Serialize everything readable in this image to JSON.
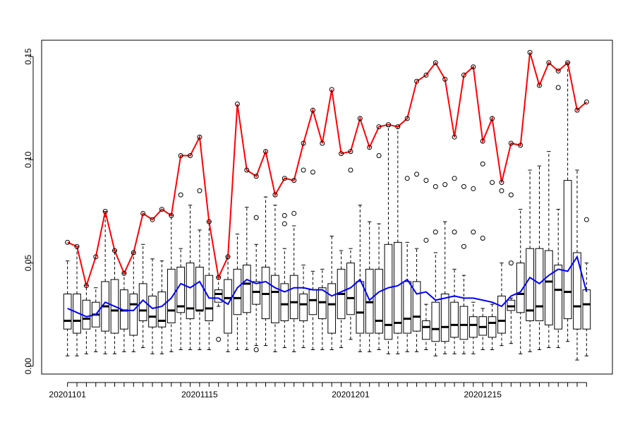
{
  "chart_data": {
    "type": "boxplot",
    "categories": [
      "20201101",
      null,
      null,
      null,
      null,
      null,
      null,
      null,
      null,
      null,
      null,
      null,
      null,
      null,
      "20201115",
      null,
      null,
      null,
      null,
      null,
      null,
      null,
      null,
      null,
      null,
      null,
      null,
      null,
      null,
      null,
      "20201201",
      null,
      null,
      null,
      null,
      null,
      null,
      null,
      null,
      null,
      null,
      null,
      null,
      null,
      "20201215",
      null,
      null,
      null,
      null,
      null,
      null,
      null,
      null,
      null,
      null,
      null
    ],
    "ylim": [
      -0.0038,
      0.1579
    ],
    "yticks": [
      {
        "value": 0,
        "label": "0.00"
      },
      0.05,
      {
        "value": 0.1,
        "label": "0.10"
      },
      0.15
    ],
    "box_color": "#000000",
    "boxes": [
      {
        "whislo": 0.005,
        "q1": 0.018,
        "med": 0.022,
        "q3": 0.035,
        "whishi": 0.051,
        "outliers": []
      },
      {
        "whislo": 0.005,
        "q1": 0.016,
        "med": 0.022,
        "q3": 0.035,
        "whishi": 0.058,
        "outliers": []
      },
      {
        "whislo": 0.006,
        "q1": 0.018,
        "med": 0.023,
        "q3": 0.032,
        "whishi": 0.039,
        "outliers": []
      },
      {
        "whislo": 0.007,
        "q1": 0.019,
        "med": 0.025,
        "q3": 0.031,
        "whishi": 0.038,
        "outliers": []
      },
      {
        "whislo": 0.006,
        "q1": 0.017,
        "med": 0.029,
        "q3": 0.041,
        "whishi": 0.075,
        "outliers": []
      },
      {
        "whislo": 0.006,
        "q1": 0.016,
        "med": 0.027,
        "q3": 0.042,
        "whishi": 0.056,
        "outliers": []
      },
      {
        "whislo": 0.007,
        "q1": 0.018,
        "med": 0.027,
        "q3": 0.037,
        "whishi": 0.045,
        "outliers": []
      },
      {
        "whislo": 0.007,
        "q1": 0.015,
        "med": 0.03,
        "q3": 0.035,
        "whishi": 0.055,
        "outliers": []
      },
      {
        "whislo": 0.009,
        "q1": 0.022,
        "med": 0.027,
        "q3": 0.04,
        "whishi": 0.059,
        "outliers": []
      },
      {
        "whislo": 0.006,
        "q1": 0.019,
        "med": 0.024,
        "q3": 0.034,
        "whishi": 0.052,
        "outliers": []
      },
      {
        "whislo": 0.006,
        "q1": 0.019,
        "med": 0.022,
        "q3": 0.036,
        "whishi": 0.051,
        "outliers": []
      },
      {
        "whislo": 0.007,
        "q1": 0.021,
        "med": 0.027,
        "q3": 0.047,
        "whishi": 0.073,
        "outliers": []
      },
      {
        "whislo": 0.008,
        "q1": 0.026,
        "med": 0.029,
        "q3": 0.048,
        "whishi": 0.057,
        "outliers": [
          0.083
        ]
      },
      {
        "whislo": 0.008,
        "q1": 0.023,
        "med": 0.028,
        "q3": 0.05,
        "whishi": 0.078,
        "outliers": []
      },
      {
        "whislo": 0.008,
        "q1": 0.027,
        "med": 0.027,
        "q3": 0.048,
        "whishi": 0.066,
        "outliers": [
          0.085
        ]
      },
      {
        "whislo": 0.008,
        "q1": 0.022,
        "med": 0.028,
        "q3": 0.044,
        "whishi": 0.07,
        "outliers": []
      },
      {
        "whislo": 0.029,
        "q1": 0.031,
        "med": 0.035,
        "q3": 0.037,
        "whishi": 0.043,
        "outliers": [
          0.013
        ]
      },
      {
        "whislo": 0.007,
        "q1": 0.016,
        "med": 0.033,
        "q3": 0.042,
        "whishi": 0.053,
        "outliers": []
      },
      {
        "whislo": 0.008,
        "q1": 0.025,
        "med": 0.033,
        "q3": 0.047,
        "whishi": 0.064,
        "outliers": []
      },
      {
        "whislo": 0.008,
        "q1": 0.026,
        "med": 0.04,
        "q3": 0.049,
        "whishi": 0.077,
        "outliers": []
      },
      {
        "whislo": 0.01,
        "q1": 0.03,
        "med": 0.036,
        "q3": 0.041,
        "whishi": 0.059,
        "outliers": [
          0.072,
          0.008
        ]
      },
      {
        "whislo": 0.01,
        "q1": 0.023,
        "med": 0.035,
        "q3": 0.048,
        "whishi": 0.082,
        "outliers": []
      },
      {
        "whislo": 0.007,
        "q1": 0.021,
        "med": 0.036,
        "q3": 0.044,
        "whishi": 0.078,
        "outliers": []
      },
      {
        "whislo": 0.009,
        "q1": 0.022,
        "med": 0.03,
        "q3": 0.04,
        "whishi": 0.057,
        "outliers": [
          0.069,
          0.073
        ]
      },
      {
        "whislo": 0.007,
        "q1": 0.023,
        "med": 0.031,
        "q3": 0.044,
        "whishi": 0.068,
        "outliers": [
          0.074
        ]
      },
      {
        "whislo": 0.009,
        "q1": 0.022,
        "med": 0.03,
        "q3": 0.035,
        "whishi": 0.049,
        "outliers": [
          0.095
        ]
      },
      {
        "whislo": 0.008,
        "q1": 0.025,
        "med": 0.032,
        "q3": 0.037,
        "whishi": 0.046,
        "outliers": [
          0.094
        ]
      },
      {
        "whislo": 0.008,
        "q1": 0.023,
        "med": 0.031,
        "q3": 0.038,
        "whishi": 0.047,
        "outliers": []
      },
      {
        "whislo": 0.008,
        "q1": 0.016,
        "med": 0.03,
        "q3": 0.04,
        "whishi": 0.063,
        "outliers": []
      },
      {
        "whislo": 0.009,
        "q1": 0.023,
        "med": 0.035,
        "q3": 0.047,
        "whishi": 0.056,
        "outliers": []
      },
      {
        "whislo": 0.013,
        "q1": 0.025,
        "med": 0.033,
        "q3": 0.05,
        "whishi": 0.057,
        "outliers": [
          0.095
        ]
      },
      {
        "whislo": 0.007,
        "q1": 0.016,
        "med": 0.026,
        "q3": 0.041,
        "whishi": 0.078,
        "outliers": []
      },
      {
        "whislo": 0.007,
        "q1": 0.016,
        "med": 0.031,
        "q3": 0.047,
        "whishi": 0.07,
        "outliers": []
      },
      {
        "whislo": 0.008,
        "q1": 0.016,
        "med": 0.022,
        "q3": 0.047,
        "whishi": 0.069,
        "outliers": [
          0.102
        ]
      },
      {
        "whislo": 0.006,
        "q1": 0.013,
        "med": 0.02,
        "q3": 0.059,
        "whishi": 0.116,
        "outliers": []
      },
      {
        "whislo": 0.006,
        "q1": 0.016,
        "med": 0.021,
        "q3": 0.06,
        "whishi": 0.116,
        "outliers": []
      },
      {
        "whislo": 0.007,
        "q1": 0.016,
        "med": 0.023,
        "q3": 0.041,
        "whishi": 0.06,
        "outliers": [
          0.091
        ]
      },
      {
        "whislo": 0.007,
        "q1": 0.017,
        "med": 0.024,
        "q3": 0.041,
        "whishi": 0.057,
        "outliers": [
          0.093
        ]
      },
      {
        "whislo": 0.008,
        "q1": 0.013,
        "med": 0.019,
        "q3": 0.022,
        "whishi": 0.03,
        "outliers": [
          0.061,
          0.09
        ]
      },
      {
        "whislo": 0.005,
        "q1": 0.012,
        "med": 0.018,
        "q3": 0.031,
        "whishi": 0.055,
        "outliers": [
          0.065,
          0.087
        ]
      },
      {
        "whislo": 0.006,
        "q1": 0.012,
        "med": 0.019,
        "q3": 0.035,
        "whishi": 0.07,
        "outliers": [
          0.088
        ]
      },
      {
        "whislo": 0.006,
        "q1": 0.014,
        "med": 0.02,
        "q3": 0.031,
        "whishi": 0.047,
        "outliers": [
          0.065,
          0.091
        ]
      },
      {
        "whislo": 0.006,
        "q1": 0.013,
        "med": 0.02,
        "q3": 0.029,
        "whishi": 0.044,
        "outliers": [
          0.058,
          0.087
        ]
      },
      {
        "whislo": 0.006,
        "q1": 0.014,
        "med": 0.02,
        "q3": 0.024,
        "whishi": 0.031,
        "outliers": [
          0.065,
          0.086
        ]
      },
      {
        "whislo": 0.008,
        "q1": 0.015,
        "med": 0.019,
        "q3": 0.024,
        "whishi": 0.028,
        "outliers": [
          0.062,
          0.098
        ]
      },
      {
        "whislo": 0.008,
        "q1": 0.014,
        "med": 0.021,
        "q3": 0.024,
        "whishi": 0.03,
        "outliers": [
          0.089
        ]
      },
      {
        "whislo": 0.01,
        "q1": 0.016,
        "med": 0.022,
        "q3": 0.034,
        "whishi": 0.05,
        "outliers": [
          0.085
        ]
      },
      {
        "whislo": 0.011,
        "q1": 0.027,
        "med": 0.029,
        "q3": 0.032,
        "whishi": 0.033,
        "outliers": [
          0.05,
          0.083
        ]
      },
      {
        "whislo": 0.006,
        "q1": 0.026,
        "med": 0.035,
        "q3": 0.05,
        "whishi": 0.076,
        "outliers": []
      },
      {
        "whislo": 0.007,
        "q1": 0.022,
        "med": 0.027,
        "q3": 0.057,
        "whishi": 0.095,
        "outliers": []
      },
      {
        "whislo": 0.008,
        "q1": 0.022,
        "med": 0.029,
        "q3": 0.057,
        "whishi": 0.097,
        "outliers": []
      },
      {
        "whislo": 0.009,
        "q1": 0.02,
        "med": 0.041,
        "q3": 0.056,
        "whishi": 0.104,
        "outliers": []
      },
      {
        "whislo": 0.009,
        "q1": 0.018,
        "med": 0.037,
        "q3": 0.049,
        "whishi": 0.076,
        "outliers": [
          0.135
        ]
      },
      {
        "whislo": 0.012,
        "q1": 0.023,
        "med": 0.036,
        "q3": 0.09,
        "whishi": 0.147,
        "outliers": []
      },
      {
        "whislo": 0.003,
        "q1": 0.018,
        "med": 0.029,
        "q3": 0.055,
        "whishi": 0.095,
        "outliers": []
      },
      {
        "whislo": 0.005,
        "q1": 0.018,
        "med": 0.03,
        "q3": 0.037,
        "whishi": 0.05,
        "outliers": [
          0.071
        ]
      }
    ],
    "series": [
      {
        "color": "#ff0000",
        "values": [
          0.06,
          0.058,
          0.039,
          0.053,
          0.075,
          0.056,
          0.045,
          0.055,
          0.074,
          0.071,
          0.076,
          0.073,
          0.102,
          0.102,
          0.111,
          0.07,
          0.043,
          0.053,
          0.127,
          0.095,
          0.092,
          0.104,
          0.083,
          0.091,
          0.09,
          0.108,
          0.124,
          0.108,
          0.134,
          0.103,
          0.104,
          0.12,
          0.106,
          0.116,
          0.117,
          0.116,
          0.12,
          0.138,
          0.141,
          0.147,
          0.139,
          0.111,
          0.141,
          0.145,
          0.109,
          0.12,
          0.089,
          0.108,
          0.107,
          0.152,
          0.136,
          0.147,
          0.143,
          0.147,
          0.124,
          0.128
        ]
      },
      {
        "color": "#0000ff",
        "values": [
          0.028,
          0.026,
          0.024,
          0.025,
          0.031,
          0.029,
          0.027,
          0.027,
          0.032,
          0.028,
          0.029,
          0.033,
          0.04,
          0.038,
          0.041,
          0.033,
          0.033,
          0.03,
          0.038,
          0.042,
          0.04,
          0.041,
          0.038,
          0.036,
          0.038,
          0.038,
          0.037,
          0.037,
          0.034,
          0.036,
          0.038,
          0.042,
          0.032,
          0.036,
          0.038,
          0.039,
          0.042,
          0.035,
          0.036,
          0.032,
          0.033,
          0.034,
          0.033,
          0.033,
          0.032,
          0.031,
          0.029,
          0.034,
          0.036,
          0.043,
          0.04,
          0.044,
          0.047,
          0.046,
          0.053,
          0.036
        ]
      }
    ]
  }
}
